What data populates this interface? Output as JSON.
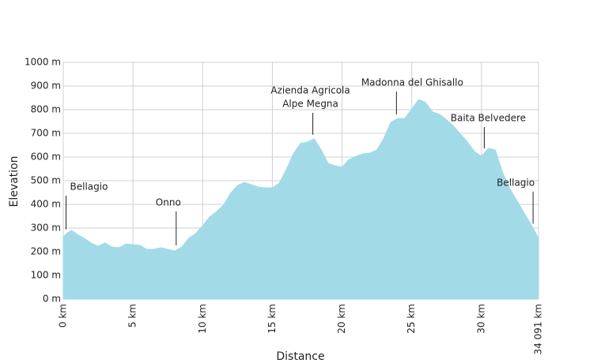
{
  "chart_data": {
    "type": "area",
    "x_label": "Distance",
    "y_label": "Elevation",
    "color": "#a2dae8",
    "grid": true,
    "x": [
      0,
      0.3,
      0.6,
      1.0,
      1.5,
      2.0,
      2.5,
      3.0,
      3.5,
      4.0,
      4.5,
      5.0,
      5.5,
      6.0,
      6.5,
      7.0,
      7.5,
      8.0,
      8.5,
      9.0,
      9.5,
      10.0,
      10.5,
      11.0,
      11.5,
      12.0,
      12.5,
      13.0,
      13.5,
      14.0,
      14.5,
      15.0,
      15.5,
      16.0,
      16.5,
      17.0,
      17.5,
      18.0,
      18.5,
      19.0,
      19.5,
      20.0,
      20.5,
      21.0,
      21.5,
      22.0,
      22.5,
      23.0,
      23.5,
      24.0,
      24.5,
      25.0,
      25.5,
      26.0,
      26.5,
      27.0,
      27.5,
      28.0,
      28.5,
      29.0,
      29.5,
      30.0,
      30.5,
      31.0,
      31.5,
      32.0,
      32.5,
      33.0,
      33.5,
      34.091
    ],
    "values": [
      263,
      280,
      290,
      273,
      257,
      237,
      223,
      237,
      220,
      217,
      233,
      230,
      227,
      210,
      210,
      217,
      210,
      203,
      220,
      257,
      277,
      310,
      347,
      370,
      397,
      447,
      480,
      493,
      483,
      473,
      470,
      470,
      490,
      547,
      613,
      657,
      663,
      677,
      630,
      573,
      563,
      557,
      590,
      603,
      613,
      617,
      630,
      680,
      747,
      763,
      763,
      803,
      843,
      830,
      790,
      780,
      757,
      730,
      697,
      663,
      623,
      603,
      637,
      630,
      537,
      470,
      420,
      370,
      320,
      257
    ],
    "xlim": [
      0,
      34.091
    ],
    "xticks": [
      {
        "value": 0,
        "label": "0 km"
      },
      {
        "value": 5,
        "label": "5 km"
      },
      {
        "value": 10,
        "label": "10 km"
      },
      {
        "value": 15,
        "label": "15 km"
      },
      {
        "value": 20,
        "label": "20 km"
      },
      {
        "value": 25,
        "label": "25 km"
      },
      {
        "value": 30,
        "label": "30 km"
      },
      {
        "value": 34.091,
        "label": "34 091 km"
      }
    ],
    "ylim": [
      0,
      1000
    ],
    "yticks": [
      {
        "value": 0,
        "label": "0 m"
      },
      {
        "value": 100,
        "label": "100 m"
      },
      {
        "value": 200,
        "label": "200 m"
      },
      {
        "value": 300,
        "label": "300 m"
      },
      {
        "value": 400,
        "label": "400 m"
      },
      {
        "value": 500,
        "label": "500 m"
      },
      {
        "value": 600,
        "label": "600 m"
      },
      {
        "value": 700,
        "label": "700 m"
      },
      {
        "value": 800,
        "label": "800 m"
      },
      {
        "value": 900,
        "label": "900 m"
      },
      {
        "value": 1000,
        "label": "1000 m"
      }
    ],
    "annotations": [
      {
        "lines": [
          "Bellagio"
        ],
        "x": 0.2
      },
      {
        "lines": [
          "Onno"
        ],
        "x": 8.1
      },
      {
        "lines": [
          "Azienda Agricola",
          "Alpe Megna"
        ],
        "x": 17.9
      },
      {
        "lines": [
          "Madonna del Ghisallo"
        ],
        "x": 23.9
      },
      {
        "lines": [
          "Baita Belvedere"
        ],
        "x": 30.2
      },
      {
        "lines": [
          "Bellagio"
        ],
        "x": 33.7
      }
    ]
  }
}
